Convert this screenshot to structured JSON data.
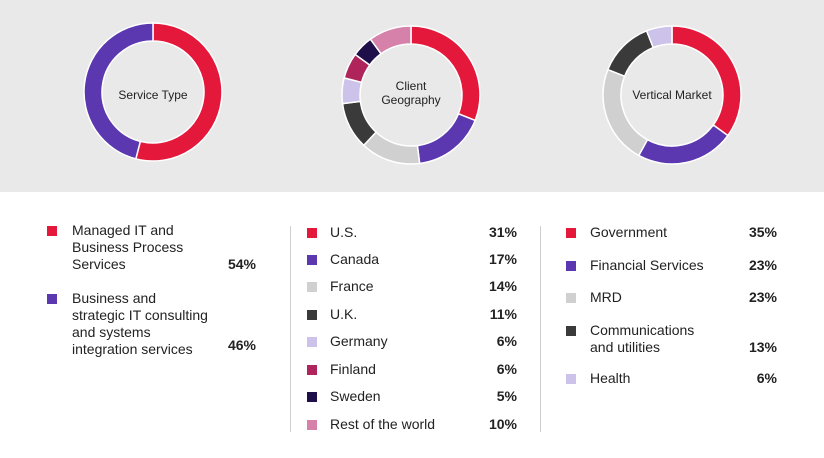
{
  "chart_data": [
    {
      "type": "pie",
      "center_label": "Service Type",
      "categories": [
        "Managed IT and Business Process Services",
        "Business and strategic IT consulting and systems integration services"
      ],
      "values": [
        54,
        46
      ],
      "value_labels": [
        "54%",
        "46%"
      ],
      "colors": [
        "#e3183b",
        "#5b38b0"
      ]
    },
    {
      "type": "pie",
      "center_label": "Client\nGeography",
      "categories": [
        "U.S.",
        "Canada",
        "France",
        "U.K.",
        "Germany",
        "Finland",
        "Sweden",
        "Rest of the world"
      ],
      "values": [
        31,
        17,
        14,
        11,
        6,
        6,
        5,
        10
      ],
      "value_labels": [
        "31%",
        "17%",
        "14%",
        "11%",
        "6%",
        "6%",
        "5%",
        "10%"
      ],
      "colors": [
        "#e3183b",
        "#5b38b0",
        "#d0d0d0",
        "#3a3a3a",
        "#cdc3ea",
        "#b0245c",
        "#1e0f4a",
        "#d581a9"
      ]
    },
    {
      "type": "pie",
      "center_label": "Vertical Market",
      "categories": [
        "Government",
        "Financial Services",
        "MRD",
        "Communications\nand utilities",
        "Health"
      ],
      "values": [
        35,
        23,
        23,
        13,
        6
      ],
      "value_labels": [
        "35%",
        "23%",
        "23%",
        "13%",
        "6%"
      ],
      "colors": [
        "#e3183b",
        "#5b38b0",
        "#d0d0d0",
        "#3a3a3a",
        "#cdc3ea"
      ]
    }
  ],
  "legend_labels": [
    [
      "Managed IT and\nBusiness Process\nServices",
      "Business and\nstrategic IT consulting\nand systems\nintegration services"
    ],
    [
      "U.S.",
      "Canada",
      "France",
      "U.K.",
      "Germany",
      "Finland",
      "Sweden",
      "Rest of the world"
    ],
    [
      "Government",
      "Financial Services",
      "MRD",
      "Communications\nand utilities",
      "Health"
    ]
  ]
}
